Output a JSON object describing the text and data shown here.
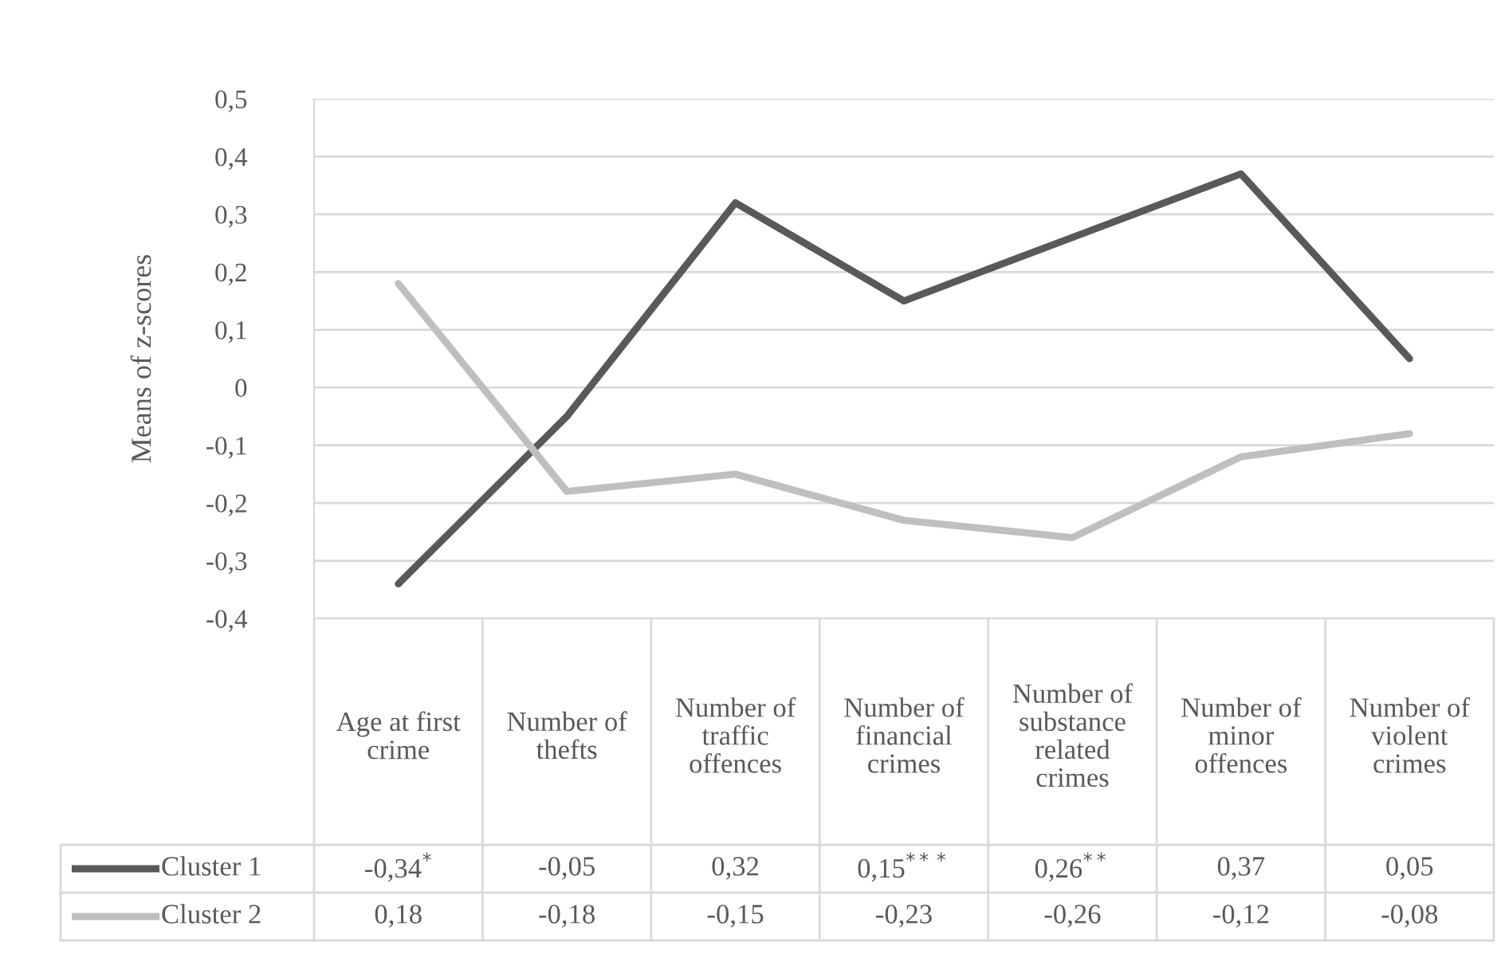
{
  "chart_data": {
    "type": "line",
    "ylabel": "Means of z-scores",
    "categories": [
      "Age at first crime",
      "Number of thefts",
      "Number of traffic offences",
      "Number of financial crimes",
      "Number of substance related crimes",
      "Number of minor offences",
      "Number of violent crimes"
    ],
    "series": [
      {
        "name": "Cluster 1",
        "color": "#595959",
        "values": [
          -0.34,
          -0.05,
          0.32,
          0.15,
          0.26,
          0.37,
          0.05
        ],
        "value_labels": [
          "-0,34$^{*}$",
          "-0,05",
          "0,32",
          "0,15$^{***}$",
          "0,26$^{**}$",
          "0,37",
          "0,05"
        ]
      },
      {
        "name": "Cluster 2",
        "color": "#bfbfbf",
        "values": [
          0.18,
          -0.18,
          -0.15,
          -0.23,
          -0.26,
          -0.12,
          -0.08
        ],
        "value_labels": [
          "0,18",
          "-0,18",
          "-0,15",
          "-0,23",
          "-0,26",
          "-0,12",
          "-0,08"
        ]
      }
    ],
    "ylim": [
      -0.4,
      0.5
    ],
    "yticks": [
      {
        "value": -0.4,
        "label": "-0,4"
      },
      {
        "value": -0.3,
        "label": "-0,3"
      },
      {
        "value": -0.2,
        "label": "-0,2"
      },
      {
        "value": -0.1,
        "label": "-0,1"
      },
      {
        "value": 0,
        "label": "0"
      },
      {
        "value": 0.1,
        "label": "0,1"
      },
      {
        "value": 0.2,
        "label": "0,2"
      },
      {
        "value": 0.3,
        "label": "0,3"
      },
      {
        "value": 0.4,
        "label": "0,4"
      },
      {
        "value": 0.5,
        "label": "0,5"
      }
    ],
    "grid": "y",
    "legend": "bottom",
    "line_style": "solid"
  }
}
